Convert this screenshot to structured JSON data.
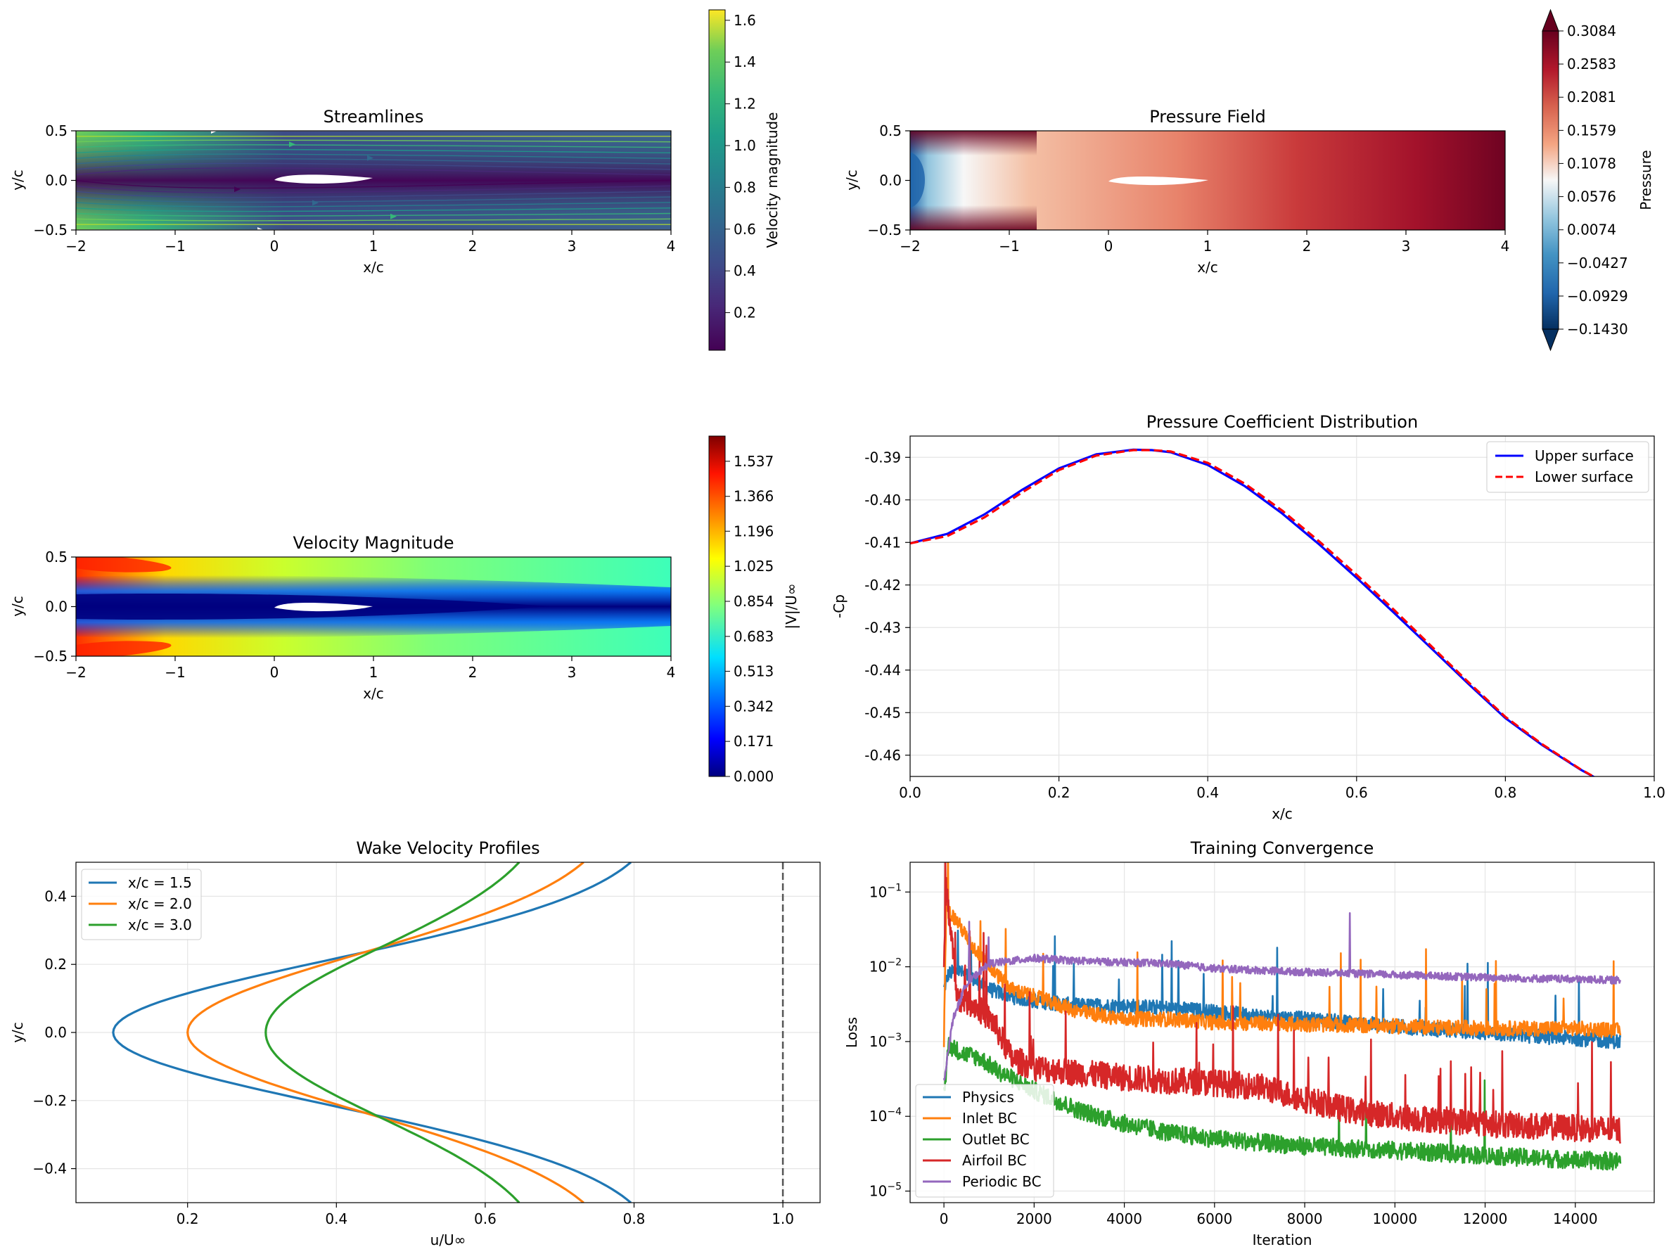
{
  "colors": {
    "blue": "#1f77b4",
    "orange": "#ff7f0e",
    "green": "#2ca02c",
    "red": "#d62728",
    "purple": "#9467bd",
    "cp_upper": "#0000ff",
    "cp_lower": "#ff0000"
  },
  "chart_data": [
    {
      "type": "heatmap",
      "title": "Streamlines",
      "xlabel": "x/c",
      "ylabel": "y/c",
      "xlim": [
        -2,
        4
      ],
      "ylim": [
        -0.5,
        0.5
      ],
      "xticks": [
        "−2",
        "−1",
        "0",
        "1",
        "2",
        "3",
        "4"
      ],
      "yticks": [
        "−0.5",
        "0.0",
        "0.5"
      ],
      "colormap": "viridis",
      "colorbar": {
        "label": "Velocity magnitude",
        "range": [
          0.02,
          1.65
        ],
        "ticks": [
          "0.2",
          "0.4",
          "0.6",
          "0.8",
          "1.0",
          "1.2",
          "1.4",
          "1.6"
        ]
      }
    },
    {
      "type": "heatmap",
      "title": "Pressure Field",
      "xlabel": "x/c",
      "ylabel": "y/c",
      "xlim": [
        -2,
        4
      ],
      "ylim": [
        -0.5,
        0.5
      ],
      "xticks": [
        "−2",
        "−1",
        "0",
        "1",
        "2",
        "3",
        "4"
      ],
      "yticks": [
        "−0.5",
        "0.0",
        "0.5"
      ],
      "colormap": "RdBu_r",
      "colorbar": {
        "label": "Pressure",
        "range": [
          -0.143,
          0.3084
        ],
        "ticks": [
          "0.3084",
          "0.2583",
          "0.2081",
          "0.1579",
          "0.1078",
          "0.0576",
          "0.0074",
          "−0.0427",
          "−0.0929",
          "−0.1430"
        ]
      }
    },
    {
      "type": "heatmap",
      "title": "Velocity Magnitude",
      "xlabel": "x/c",
      "ylabel": "y/c",
      "xlim": [
        -2,
        4
      ],
      "ylim": [
        -0.5,
        0.5
      ],
      "xticks": [
        "−2",
        "−1",
        "0",
        "1",
        "2",
        "3",
        "4"
      ],
      "yticks": [
        "−0.5",
        "0.0",
        "0.5"
      ],
      "colormap": "jet",
      "colorbar": {
        "label": "|V|/U∞",
        "range": [
          0,
          1.66
        ],
        "ticks": [
          "1.537",
          "1.366",
          "1.196",
          "1.025",
          "0.854",
          "0.683",
          "0.513",
          "0.342",
          "0.171",
          "0.000"
        ]
      }
    },
    {
      "type": "line",
      "title": "Pressure Coefficient Distribution",
      "xlabel": "x/c",
      "ylabel": "-Cp",
      "xlim": [
        0,
        1
      ],
      "ylim": [
        -0.465,
        -0.385
      ],
      "xticks": [
        "0.0",
        "0.2",
        "0.4",
        "0.6",
        "0.8",
        "1.0"
      ],
      "yticks": [
        "-0.39",
        "-0.40",
        "-0.41",
        "-0.42",
        "-0.43",
        "-0.44",
        "-0.45",
        "-0.46"
      ],
      "grid": true,
      "legend": "top-right",
      "series": [
        {
          "name": "Upper surface",
          "style": "solid",
          "x": [
            0,
            0.05,
            0.1,
            0.15,
            0.2,
            0.25,
            0.3,
            0.325,
            0.35,
            0.4,
            0.45,
            0.5,
            0.55,
            0.6,
            0.65,
            0.7,
            0.75,
            0.8,
            0.85,
            0.9,
            0.95,
            1.0
          ],
          "y": [
            -0.4102,
            -0.408,
            -0.4034,
            -0.3977,
            -0.3926,
            -0.3893,
            -0.3882,
            -0.3883,
            -0.3888,
            -0.3918,
            -0.3968,
            -0.4032,
            -0.4105,
            -0.4183,
            -0.4265,
            -0.4348,
            -0.4432,
            -0.4513,
            -0.4577,
            -0.4633,
            -0.4681,
            -0.4725
          ]
        },
        {
          "name": "Lower surface",
          "style": "dashed",
          "x": [
            0,
            0.05,
            0.1,
            0.15,
            0.2,
            0.25,
            0.3,
            0.325,
            0.35,
            0.4,
            0.45,
            0.5,
            0.55,
            0.6,
            0.65,
            0.7,
            0.75,
            0.8,
            0.85,
            0.9,
            0.95,
            1.0
          ],
          "y": [
            -0.4102,
            -0.4085,
            -0.4041,
            -0.3983,
            -0.393,
            -0.3896,
            -0.3883,
            -0.3883,
            -0.3886,
            -0.3913,
            -0.3962,
            -0.4025,
            -0.4098,
            -0.4176,
            -0.4258,
            -0.4343,
            -0.4428,
            -0.451,
            -0.4575,
            -0.4632,
            -0.4681,
            -0.4725
          ]
        }
      ]
    },
    {
      "type": "line",
      "title": "Wake Velocity Profiles",
      "xlabel": "u/U∞",
      "ylabel": "y/c",
      "xlim": [
        0.05,
        1.05
      ],
      "ylim": [
        -0.5,
        0.5
      ],
      "xticks": [
        "0.2",
        "0.4",
        "0.6",
        "0.8",
        "1.0"
      ],
      "yticks": [
        "0.4",
        "0.2",
        "0.0",
        "−0.2",
        "−0.4"
      ],
      "grid": true,
      "legend": "top-left",
      "reference_line": {
        "x": 1.0,
        "style": "dashed"
      },
      "series": [
        {
          "name": "x/c = 1.5",
          "deficit": 0.745,
          "width": 0.2145,
          "freestream": 0.845
        },
        {
          "name": "x/c = 2.0",
          "deficit": 0.59,
          "width": 0.232,
          "freestream": 0.79
        },
        {
          "name": "x/c = 3.0",
          "deficit": 0.395,
          "width": 0.251,
          "freestream": 0.7
        }
      ]
    },
    {
      "type": "line",
      "title": "Training Convergence",
      "xlabel": "Iteration",
      "ylabel": "Loss",
      "xlim": [
        -750,
        15750
      ],
      "ylim": [
        7e-06,
        0.25
      ],
      "yscale": "log",
      "xticks": [
        "0",
        "2000",
        "4000",
        "6000",
        "8000",
        "10000",
        "12000",
        "14000"
      ],
      "yticks": [
        {
          "base": "10",
          "exp": "−1"
        },
        {
          "base": "10",
          "exp": "−2"
        },
        {
          "base": "10",
          "exp": "−3"
        },
        {
          "base": "10",
          "exp": "−4"
        },
        {
          "base": "10",
          "exp": "−5"
        }
      ],
      "grid": true,
      "legend": "bottom-left",
      "series": [
        {
          "name": "Physics",
          "x": [
            0,
            100,
            300,
            600,
            1000,
            1500,
            2000,
            3000,
            4000,
            5000,
            6000,
            7000,
            8000,
            9000,
            10000,
            12000,
            14000,
            15000
          ],
          "y": [
            0.005,
            0.008,
            0.009,
            0.007,
            0.005,
            0.004,
            0.0035,
            0.003,
            0.003,
            0.0028,
            0.0025,
            0.0022,
            0.002,
            0.0018,
            0.0016,
            0.0013,
            0.0011,
            0.001
          ]
        },
        {
          "name": "Inlet BC",
          "x": [
            0,
            50,
            300,
            600,
            1000,
            1500,
            2000,
            3000,
            4000,
            5000,
            6000,
            8000,
            10000,
            12000,
            14000,
            15000
          ],
          "y": [
            0.001,
            0.06,
            0.04,
            0.02,
            0.01,
            0.005,
            0.004,
            0.0025,
            0.002,
            0.002,
            0.0018,
            0.0017,
            0.0016,
            0.0015,
            0.0015,
            0.0014
          ]
        },
        {
          "name": "Outlet BC",
          "x": [
            0,
            100,
            400,
            800,
            1200,
            1600,
            2000,
            3000,
            4000,
            5000,
            6000,
            8000,
            10000,
            12000,
            14000,
            15000
          ],
          "y": [
            0.0002,
            0.0009,
            0.0007,
            0.0006,
            0.0004,
            0.0003,
            0.00022,
            0.00012,
            8e-05,
            6e-05,
            5e-05,
            4e-05,
            3.5e-05,
            3e-05,
            2.6e-05,
            2.5e-05
          ]
        },
        {
          "name": "Airfoil BC",
          "x": [
            0,
            50,
            300,
            700,
            1100,
            1500,
            2000,
            3000,
            4000,
            5000,
            6000,
            7000,
            8000,
            9000,
            10000,
            12000,
            14000,
            15000
          ],
          "y": [
            0.01,
            0.12,
            0.004,
            0.003,
            0.0018,
            0.0006,
            0.00045,
            0.00038,
            0.00033,
            0.0003,
            0.00028,
            0.00025,
            0.00017,
            0.00012,
            0.0001,
            8e-05,
            7e-05,
            6.5e-05
          ]
        },
        {
          "name": "Periodic BC",
          "x": [
            0,
            200,
            500,
            1000,
            1500,
            2000,
            3000,
            4000,
            5000,
            6000,
            8000,
            10000,
            12000,
            14000,
            15000
          ],
          "y": [
            0.0003,
            0.002,
            0.006,
            0.011,
            0.012,
            0.013,
            0.012,
            0.0115,
            0.011,
            0.0095,
            0.0085,
            0.0078,
            0.0072,
            0.0068,
            0.0066
          ]
        }
      ]
    }
  ]
}
